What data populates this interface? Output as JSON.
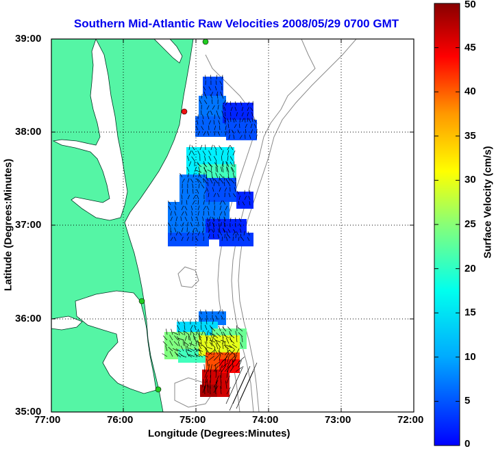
{
  "title": "Southern Mid-Atlantic Raw Velocities 2008/05/29 0700 GMT",
  "map": {
    "xlabel": "Longitude (Degrees:Minutes)",
    "ylabel": "Latitude (Degrees:Minutes)",
    "lon_ticks": [
      "77:00",
      "76:00",
      "75:00",
      "74:00",
      "73:00",
      "72:00"
    ],
    "lat_ticks": [
      "39:00",
      "38:00",
      "37:00",
      "36:00",
      "35:00"
    ],
    "lon_range": [
      -77,
      -72
    ],
    "lat_range": [
      35,
      39
    ],
    "grid": "dotted",
    "colors": {
      "land": "#55f5a5",
      "frame": "#000000",
      "bathymetry": "#888888",
      "station": "#22cc22",
      "station_alt": "#ee1111"
    }
  },
  "colorbar": {
    "label": "Surface Velocity (cm/s)",
    "ticks": [
      "0",
      "5",
      "10",
      "15",
      "20",
      "25",
      "30",
      "35",
      "40",
      "45",
      "50"
    ],
    "range": [
      0,
      50
    ],
    "colormap": "jet"
  }
}
